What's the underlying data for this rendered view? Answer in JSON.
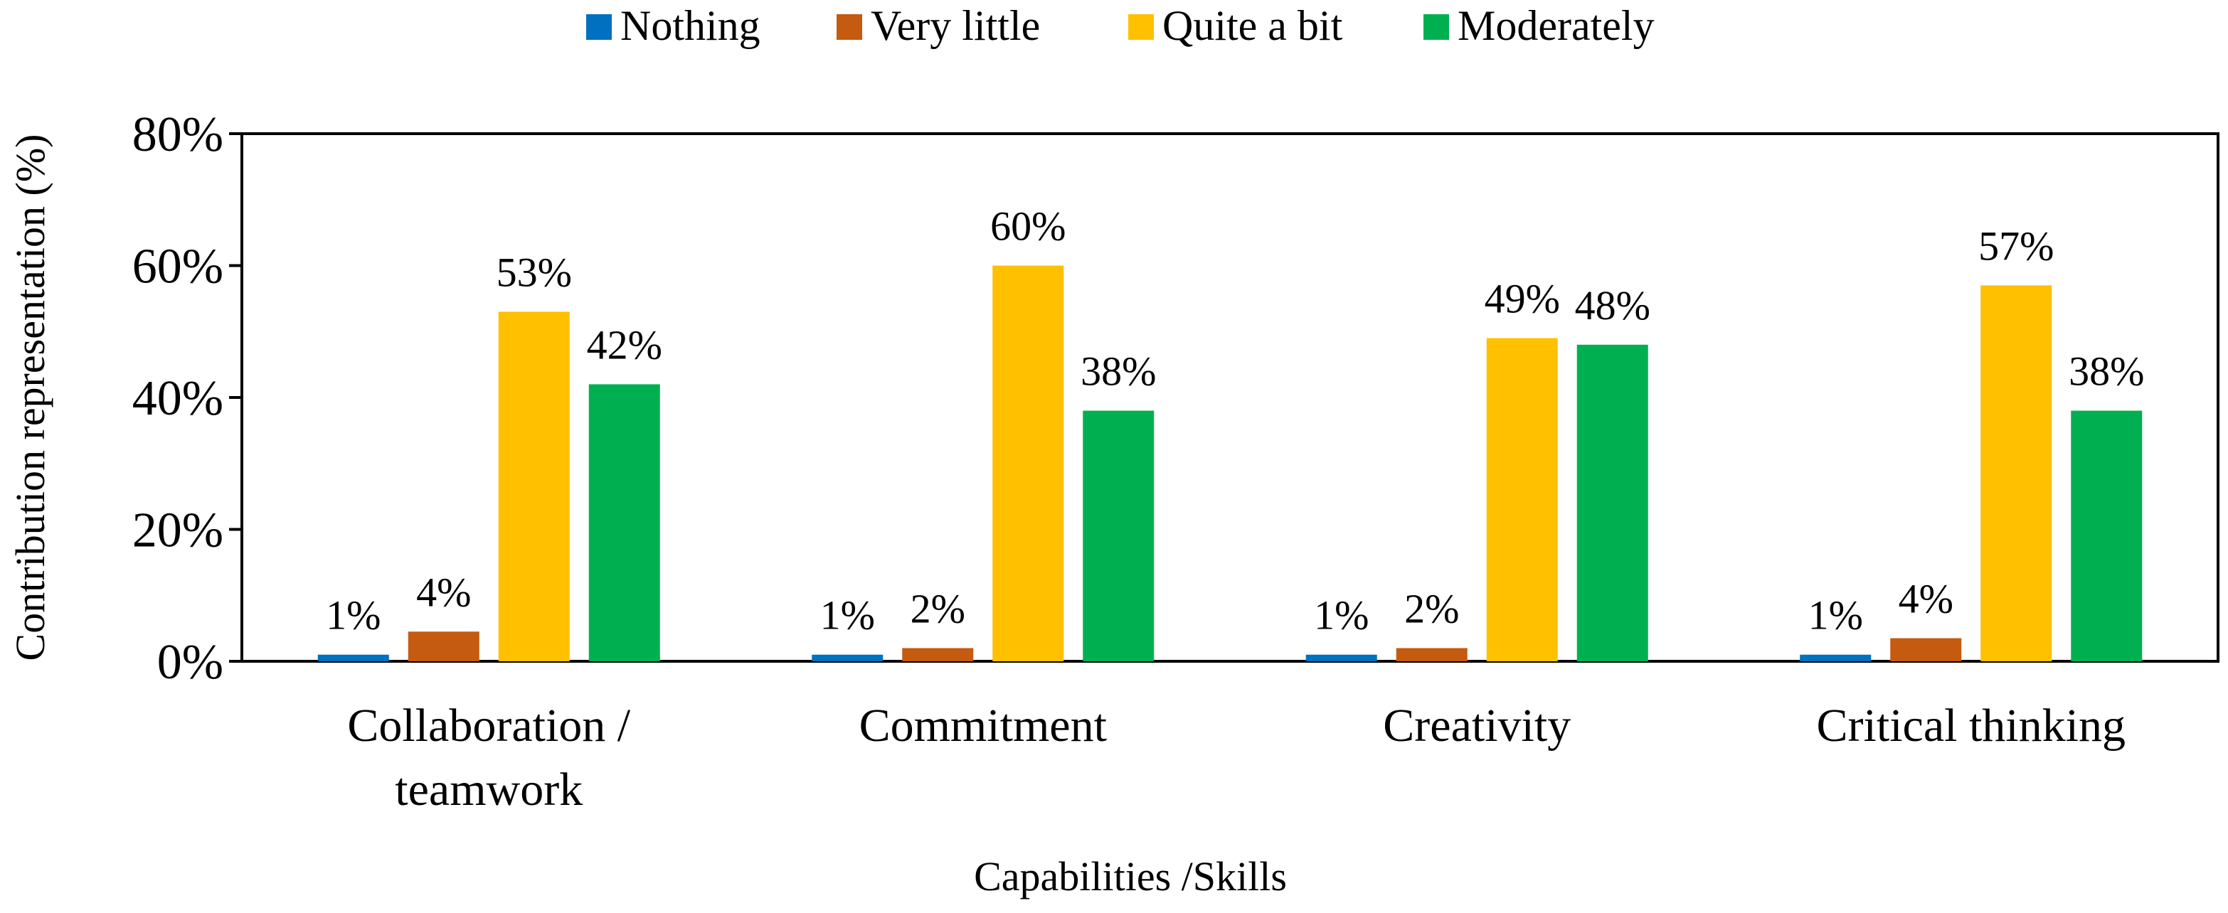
{
  "chart_data": {
    "type": "bar",
    "title": "",
    "xlabel": "Capabilities /Skills",
    "ylabel": "Contribution representation (%)",
    "ylim": [
      0,
      80
    ],
    "yticks": [
      0,
      20,
      40,
      60,
      80
    ],
    "ytick_labels": [
      "0%",
      "20%",
      "40%",
      "60%",
      "80%"
    ],
    "grid": false,
    "legend_position": "top-center",
    "categories": [
      [
        "Collaboration /",
        "teamwork"
      ],
      [
        "Commitment"
      ],
      [
        "Creativity"
      ],
      [
        "Critical thinking"
      ]
    ],
    "series": [
      {
        "name": "Nothing",
        "color": "#0070C0",
        "values": [
          1,
          1,
          1,
          1
        ],
        "labels": [
          "1%",
          "1%",
          "1%",
          "1%"
        ]
      },
      {
        "name": "Very little",
        "color": "#C55A11",
        "values": [
          4.5,
          2,
          2,
          3.5
        ],
        "labels": [
          "4%",
          "2%",
          "2%",
          "4%"
        ]
      },
      {
        "name": "Quite a bit",
        "color": "#FFC000",
        "values": [
          53,
          60,
          49,
          57
        ],
        "labels": [
          "53%",
          "60%",
          "49%",
          "57%"
        ]
      },
      {
        "name": "Moderately",
        "color": "#00B050",
        "values": [
          42,
          38,
          48,
          38
        ],
        "labels": [
          "42%",
          "38%",
          "48%",
          "38%"
        ]
      }
    ]
  }
}
